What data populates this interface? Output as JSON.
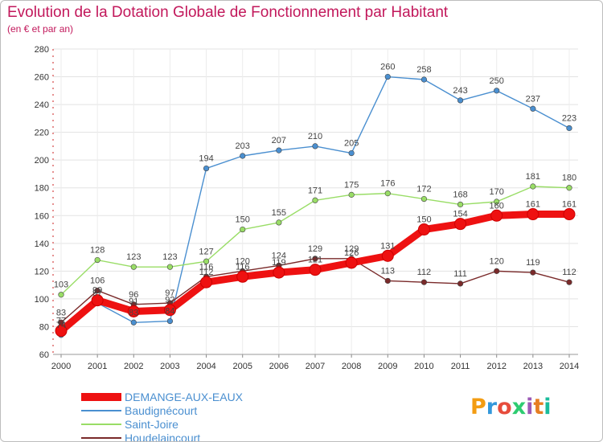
{
  "title": "Evolution de la Dotation Globale de Fonctionnement par Habitant",
  "subtitle": "(en € et par an)",
  "logo": {
    "text": "Proxiti",
    "colors": [
      "#f39c12",
      "#3498db",
      "#e74c3c",
      "#2ecc71",
      "#9b59b6",
      "#e67e22",
      "#1abc9c"
    ]
  },
  "chart_data": {
    "type": "line",
    "x": [
      "2000",
      "2001",
      "2002",
      "2003",
      "2004",
      "2005",
      "2006",
      "2007",
      "2008",
      "2009",
      "2010",
      "2011",
      "2012",
      "2013",
      "2014"
    ],
    "ylim": [
      60,
      280
    ],
    "yticks": [
      "60",
      "80",
      "100",
      "120",
      "140",
      "160",
      "180",
      "200",
      "220",
      "240",
      "260",
      "280"
    ],
    "grid": true,
    "legend_position": "bottom-left",
    "series": [
      {
        "name": "DEMANGE-AUX-EAUX",
        "color": "#ee1111",
        "values": [
          77,
          99,
          91,
          92,
          112,
          116,
          119,
          121,
          126,
          131,
          150,
          154,
          160,
          161,
          161
        ],
        "labels": [
          "77",
          "99",
          "91",
          "92",
          "112",
          "116",
          "119",
          "121",
          "126",
          "131",
          "150",
          "154",
          "160",
          "161",
          "161"
        ]
      },
      {
        "name": "Baudignécourt",
        "color": "#4a8fd0",
        "values": [
          74,
          97,
          83,
          84,
          194,
          203,
          207,
          210,
          205,
          260,
          258,
          243,
          250,
          237,
          223
        ],
        "labels": [
          "74",
          "97",
          "83",
          "84",
          "194",
          "203",
          "207",
          "210",
          "205",
          "260",
          "258",
          "243",
          "250",
          "237",
          "223"
        ]
      },
      {
        "name": "Saint-Joire",
        "color": "#99dd66",
        "values": [
          103,
          128,
          123,
          123,
          127,
          150,
          155,
          171,
          175,
          176,
          172,
          168,
          170,
          181,
          180
        ],
        "labels": [
          "103",
          "128",
          "123",
          "123",
          "127",
          "150",
          "155",
          "171",
          "175",
          "176",
          "172",
          "168",
          "170",
          "181",
          "180"
        ]
      },
      {
        "name": "Houdelaincourt",
        "color": "#7a2a2a",
        "values": [
          83,
          106,
          96,
          97,
          116,
          120,
          124,
          129,
          129,
          113,
          112,
          111,
          120,
          119,
          112
        ],
        "labels": [
          "83",
          "106",
          "96",
          "97",
          "116",
          "120",
          "124",
          "129",
          "129",
          "113",
          "112",
          "111",
          "120",
          "119",
          "112"
        ]
      }
    ]
  }
}
